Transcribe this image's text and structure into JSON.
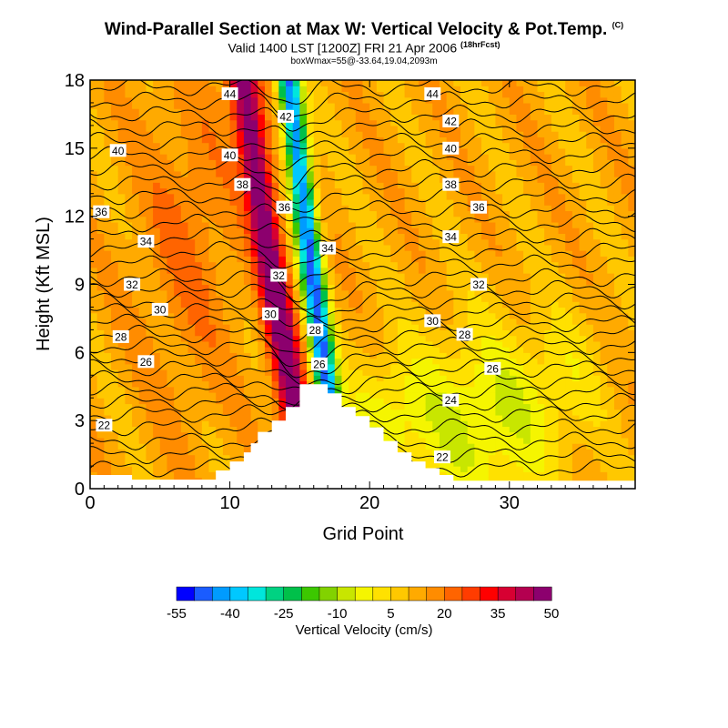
{
  "header": {
    "title": "Wind-Parallel Section at Max W: Vertical Velocity & Pot.Temp.",
    "title_mark": "(C)",
    "subtitle": "Valid 1400 LST [1200Z] FRI 21 Apr 2006",
    "subtitle_mark": "(18hrFcst)",
    "subtitle2": "boxWmax=55@-33.64,19.04,2093m"
  },
  "chart_data": {
    "type": "heatmap",
    "xlabel": "Grid Point",
    "ylabel": "Height (Kft MSL)",
    "xlim": [
      0,
      39
    ],
    "ylim": [
      0,
      18
    ],
    "x_ticks": [
      "0",
      "10",
      "20",
      "30"
    ],
    "y_ticks": [
      "0",
      "3",
      "6",
      "9",
      "12",
      "15",
      "18"
    ],
    "shaded_field": "Vertical Velocity",
    "contour_field": "Pot.Temp.",
    "colorbar": {
      "label": "Vertical Velocity (cm/s)",
      "colors": [
        "#0000ff",
        "#1a5cff",
        "#009bff",
        "#00c8ff",
        "#00e6dc",
        "#00d282",
        "#00c04a",
        "#3cc800",
        "#82d200",
        "#c8e600",
        "#f5f500",
        "#ffe100",
        "#ffc800",
        "#ffaa00",
        "#ff8c00",
        "#ff6400",
        "#ff3c00",
        "#ff0000",
        "#d70032",
        "#b40050",
        "#8c006e"
      ],
      "tick_labels": [
        "-55",
        "-40",
        "-25",
        "-10",
        "5",
        "20",
        "35",
        "50"
      ]
    },
    "theta_labels": [
      {
        "x": 10,
        "y": 17.4,
        "v": "44"
      },
      {
        "x": 24.5,
        "y": 17.4,
        "v": "44"
      },
      {
        "x": 14,
        "y": 16.4,
        "v": "42"
      },
      {
        "x": 25.8,
        "y": 16.2,
        "v": "42"
      },
      {
        "x": 2,
        "y": 14.9,
        "v": "40"
      },
      {
        "x": 10,
        "y": 14.7,
        "v": "40"
      },
      {
        "x": 25.8,
        "y": 15.0,
        "v": "40"
      },
      {
        "x": 10.9,
        "y": 13.4,
        "v": "38"
      },
      {
        "x": 25.8,
        "y": 13.4,
        "v": "38"
      },
      {
        "x": 0.8,
        "y": 12.2,
        "v": "36"
      },
      {
        "x": 13.9,
        "y": 12.4,
        "v": "36"
      },
      {
        "x": 27.8,
        "y": 12.4,
        "v": "36"
      },
      {
        "x": 4,
        "y": 10.9,
        "v": "34"
      },
      {
        "x": 17,
        "y": 10.6,
        "v": "34"
      },
      {
        "x": 25.8,
        "y": 11.1,
        "v": "34"
      },
      {
        "x": 3,
        "y": 9.0,
        "v": "32"
      },
      {
        "x": 13.5,
        "y": 9.4,
        "v": "32"
      },
      {
        "x": 27.8,
        "y": 9.0,
        "v": "32"
      },
      {
        "x": 5,
        "y": 7.9,
        "v": "30"
      },
      {
        "x": 12.9,
        "y": 7.7,
        "v": "30"
      },
      {
        "x": 24.5,
        "y": 7.4,
        "v": "30"
      },
      {
        "x": 2.2,
        "y": 6.7,
        "v": "28"
      },
      {
        "x": 16.1,
        "y": 7.0,
        "v": "28"
      },
      {
        "x": 26.8,
        "y": 6.8,
        "v": "28"
      },
      {
        "x": 4,
        "y": 5.6,
        "v": "26"
      },
      {
        "x": 16.4,
        "y": 5.5,
        "v": "26"
      },
      {
        "x": 28.8,
        "y": 5.3,
        "v": "26"
      },
      {
        "x": 25.8,
        "y": 3.9,
        "v": "24"
      },
      {
        "x": 1,
        "y": 2.8,
        "v": "22"
      },
      {
        "x": 25.2,
        "y": 1.4,
        "v": "22"
      }
    ]
  }
}
